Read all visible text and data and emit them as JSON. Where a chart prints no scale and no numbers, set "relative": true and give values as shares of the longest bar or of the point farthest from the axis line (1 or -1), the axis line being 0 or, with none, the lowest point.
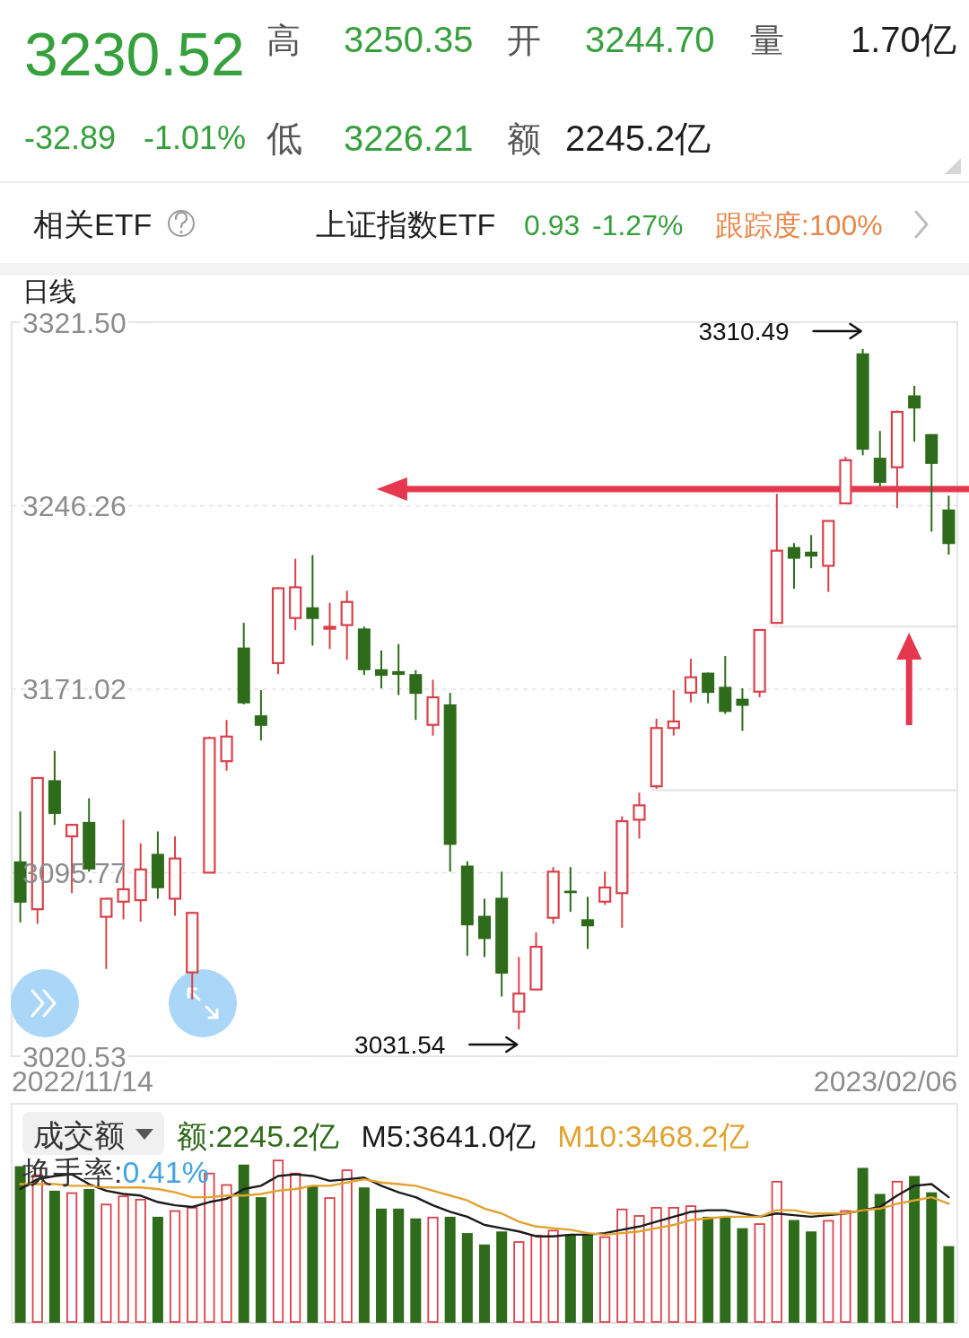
{
  "chart_data": [
    {
      "type": "other",
      "annotations": [
        "3230.52",
        "高",
        "3250.35",
        "开",
        "3244.70",
        "量",
        "1.70亿",
        "-32.89",
        "-1.01%",
        "低",
        "3226.21",
        "额",
        "2245.2亿",
        "相关ETF",
        "上证指数ETF",
        "0.93",
        "-1.27%",
        "跟踪度:100%"
      ]
    },
    {
      "type": "candlestick",
      "title": "日线",
      "tick_labels": "y",
      "categories": [
        null,
        null,
        null,
        null,
        null,
        null,
        null,
        null,
        null,
        null,
        null,
        null,
        null,
        null,
        null,
        null,
        null,
        null,
        null,
        null,
        null,
        null,
        null,
        null,
        null,
        null,
        null,
        null,
        null,
        null,
        null,
        null,
        null,
        null,
        null,
        null,
        null,
        null,
        null,
        null,
        null,
        null,
        null,
        null,
        null,
        null,
        null,
        null,
        null,
        null,
        null,
        null,
        null,
        null,
        null
      ],
      "ohlc": [
        [
          3100.4,
          3120.9,
          3075.4,
          3083.5
        ],
        [
          3080.8,
          3135.0,
          3074.8,
          3134.6
        ],
        [
          3133.7,
          3145.7,
          3115.4,
          3119.9
        ],
        [
          3110.7,
          3115.8,
          3087.4,
          3115.4
        ],
        [
          3116.6,
          3126.3,
          3096.2,
          3097.1
        ],
        [
          3077.7,
          3085.4,
          3056.3,
          3085.1
        ],
        [
          3083.9,
          3117.5,
          3076.7,
          3089.0
        ],
        [
          3084.5,
          3107.8,
          3075.7,
          3097.1
        ],
        [
          3103.5,
          3112.7,
          3085.1,
          3089.4
        ],
        [
          3085.1,
          3110.7,
          3078.1,
          3101.6
        ],
        [
          3054.9,
          3079.7,
          3043.8,
          3079.3
        ],
        [
          3095.8,
          3151.6,
          3095.6,
          3151.0
        ],
        [
          3141.5,
          3158.4,
          3137.6,
          3151.6
        ],
        [
          3188.1,
          3198.2,
          3164.8,
          3165.2
        ],
        [
          3160.3,
          3170.6,
          3150.0,
          3156.0
        ],
        [
          3181.7,
          3212.8,
          3177.2,
          3212.4
        ],
        [
          3200.2,
          3224.5,
          3195.3,
          3212.8
        ],
        [
          3204.6,
          3226.0,
          3188.9,
          3199.8
        ],
        [
          3195.8,
          3206.4,
          3187.5,
          3196.6
        ],
        [
          3197.3,
          3211.4,
          3183.1,
          3206.8
        ],
        [
          3195.9,
          3196.7,
          3176.9,
          3178.8
        ],
        [
          3179.2,
          3186.9,
          3171.4,
          3176.5
        ],
        [
          3178.4,
          3189.5,
          3168.6,
          3176.9
        ],
        [
          3177.2,
          3178.8,
          3158.4,
          3169.1
        ],
        [
          3156.4,
          3174.9,
          3152.0,
          3167.7
        ],
        [
          3164.8,
          3169.5,
          3096.2,
          3107.2
        ],
        [
          3098.7,
          3100.4,
          3061.7,
          3074.2
        ],
        [
          3078.1,
          3085.1,
          3061.2,
          3068.6
        ],
        [
          3085.5,
          3096.2,
          3045.0,
          3054.4
        ],
        [
          3038.8,
          3061.2,
          3031.54,
          3046.2
        ],
        [
          3047.9,
          3071.3,
          3047.7,
          3065.4
        ],
        [
          3077.3,
          3098.1,
          3074.8,
          3096.2
        ],
        [
          3088.4,
          3098.1,
          3079.7,
          3087.4
        ],
        [
          3076.7,
          3085.9,
          3064.5,
          3073.8
        ],
        [
          3083.9,
          3096.2,
          3082.6,
          3089.7
        ],
        [
          3087.4,
          3118.9,
          3073.2,
          3116.9
        ],
        [
          3117.5,
          3128.6,
          3109.8,
          3123.4
        ],
        [
          3131.2,
          3158.9,
          3130.2,
          3155.1
        ],
        [
          3155.1,
          3170.6,
          3152.0,
          3157.8
        ],
        [
          3169.6,
          3183.5,
          3165.6,
          3175.9
        ],
        [
          3177.8,
          3177.8,
          3165.2,
          3169.5
        ],
        [
          3172.0,
          3184.6,
          3160.9,
          3161.7
        ],
        [
          3167.1,
          3171.4,
          3153.9,
          3164.2
        ],
        [
          3170.0,
          3195.3,
          3167.7,
          3195.3
        ],
        [
          3198.2,
          3251.1,
          3197.8,
          3227.8
        ],
        [
          3229.3,
          3230.9,
          3212.2,
          3224.5
        ],
        [
          3227.4,
          3234.2,
          3220.6,
          3225.4
        ],
        [
          3221.6,
          3240.0,
          3210.9,
          3240.0
        ],
        [
          3247.2,
          3266.3,
          3246.8,
          3264.9
        ],
        [
          3308.7,
          3310.49,
          3266.9,
          3269.2
        ],
        [
          3265.9,
          3276.9,
          3254.2,
          3255.6
        ],
        [
          3262.0,
          3285.3,
          3245.3,
          3284.7
        ],
        [
          3291.5,
          3295.4,
          3272.5,
          3286.1
        ],
        [
          3275.6,
          3275.6,
          3235.6,
          3263.41
        ],
        [
          3244.7,
          3250.35,
          3226.21,
          3230.52
        ]
      ],
      "colors": [
        "#2e6b1a",
        "#d9414a",
        "#2e6b1a",
        "#d9414a",
        "#2e6b1a",
        "#d9414a",
        "#d9414a",
        "#d9414a",
        "#2e6b1a",
        "#d9414a",
        "#d9414a",
        "#d9414a",
        "#d9414a",
        "#2e6b1a",
        "#2e6b1a",
        "#d9414a",
        "#d9414a",
        "#2e6b1a",
        "#d9414a",
        "#d9414a",
        "#2e6b1a",
        "#2e6b1a",
        "#2e6b1a",
        "#2e6b1a",
        "#d9414a",
        "#2e6b1a",
        "#2e6b1a",
        "#2e6b1a",
        "#2e6b1a",
        "#d9414a",
        "#d9414a",
        "#d9414a",
        "#2e6b1a",
        "#2e6b1a",
        "#d9414a",
        "#d9414a",
        "#d9414a",
        "#d9414a",
        "#d9414a",
        "#d9414a",
        "#2e6b1a",
        "#2e6b1a",
        "#2e6b1a",
        "#d9414a",
        "#d9414a",
        "#2e6b1a",
        "#2e6b1a",
        "#d9414a",
        "#d9414a",
        "#2e6b1a",
        "#2e6b1a",
        "#d9414a",
        "#2e6b1a",
        "#2e6b1a",
        "#2e6b1a"
      ],
      "ylim": [
        3020.53,
        3321.5
      ],
      "yticks": [
        {
          "value": 3321.5,
          "label": "3321.50"
        },
        3246.26,
        3171.02,
        3095.77,
        3020.53
      ],
      "grid": "y",
      "ref_lines": [
        {
          "axis": "y",
          "value": 3253.1,
          "color": "#e5384f"
        },
        {
          "axis": "y",
          "value": 3196.7,
          "color": "#e2e2e2"
        },
        {
          "axis": "y",
          "value": 3129.6,
          "color": "#e2e2e2"
        }
      ],
      "annotations": [
        "3310.49",
        "3031.54",
        "2022/11/14",
        "2023/02/06"
      ]
    },
    {
      "type": "bar",
      "title": "成交额",
      "relative": true,
      "legend": "top left",
      "categories": [
        null,
        null,
        null,
        null,
        null,
        null,
        null,
        null,
        null,
        null,
        null,
        null,
        null,
        null,
        null,
        null,
        null,
        null,
        null,
        null,
        null,
        null,
        null,
        null,
        null,
        null,
        null,
        null,
        null,
        null,
        null,
        null,
        null,
        null,
        null,
        null,
        null,
        null,
        null,
        null,
        null,
        null,
        null,
        null,
        null,
        null,
        null,
        null,
        null,
        null,
        null,
        null,
        null,
        null,
        null
      ],
      "series": [
        {
          "type": "bar",
          "name": "额:2245.2亿",
          "color": "#2e6b1a",
          "colors": [
            "#2e6b1a",
            "#d9414a",
            "#2e6b1a",
            "#d9414a",
            "#2e6b1a",
            "#d9414a",
            "#d9414a",
            "#d9414a",
            "#2e6b1a",
            "#d9414a",
            "#d9414a",
            "#d9414a",
            "#d9414a",
            "#2e6b1a",
            "#2e6b1a",
            "#d9414a",
            "#d9414a",
            "#2e6b1a",
            "#d9414a",
            "#d9414a",
            "#2e6b1a",
            "#2e6b1a",
            "#2e6b1a",
            "#2e6b1a",
            "#d9414a",
            "#2e6b1a",
            "#2e6b1a",
            "#2e6b1a",
            "#2e6b1a",
            "#d9414a",
            "#d9414a",
            "#d9414a",
            "#2e6b1a",
            "#2e6b1a",
            "#d9414a",
            "#d9414a",
            "#d9414a",
            "#d9414a",
            "#d9414a",
            "#d9414a",
            "#2e6b1a",
            "#2e6b1a",
            "#2e6b1a",
            "#d9414a",
            "#d9414a",
            "#2e6b1a",
            "#2e6b1a",
            "#d9414a",
            "#d9414a",
            "#2e6b1a",
            "#2e6b1a",
            "#d9414a",
            "#2e6b1a",
            "#2e6b1a",
            "#2e6b1a"
          ],
          "values": [
            0.96,
            0.91,
            0.81,
            0.8,
            0.82,
            0.73,
            0.78,
            0.76,
            0.65,
            0.69,
            0.71,
            0.92,
            0.85,
            0.97,
            0.77,
            1,
            0.92,
            0.84,
            0.77,
            0.94,
            0.83,
            0.7,
            0.7,
            0.64,
            0.65,
            0.65,
            0.55,
            0.48,
            0.56,
            0.5,
            0.54,
            0.57,
            0.54,
            0.54,
            0.53,
            0.7,
            0.66,
            0.71,
            0.71,
            0.72,
            0.65,
            0.65,
            0.58,
            0.61,
            0.87,
            0.63,
            0.56,
            0.63,
            0.69,
            0.95,
            0.79,
            0.87,
            0.9,
            0.8,
            0.47
          ]
        },
        {
          "type": "line",
          "name": "M5:3641.0亿",
          "color": "#1c1c1c",
          "values": [
            0.82,
            0.88,
            0.9,
            0.91,
            0.85,
            0.81,
            0.79,
            0.78,
            0.74,
            0.72,
            0.71,
            0.74,
            0.76,
            0.82,
            0.84,
            0.9,
            0.91,
            0.9,
            0.87,
            0.88,
            0.89,
            0.84,
            0.8,
            0.77,
            0.72,
            0.68,
            0.65,
            0.6,
            0.58,
            0.56,
            0.53,
            0.53,
            0.54,
            0.54,
            0.55,
            0.57,
            0.59,
            0.62,
            0.65,
            0.68,
            0.69,
            0.69,
            0.67,
            0.65,
            0.67,
            0.66,
            0.65,
            0.66,
            0.67,
            0.69,
            0.71,
            0.78,
            0.84,
            0.85,
            0.77
          ]
        },
        {
          "type": "line",
          "name": "M10:3468.2亿",
          "color": "#e2a230",
          "values": [
            0.85,
            0.85,
            0.85,
            0.84,
            0.84,
            0.83,
            0.83,
            0.83,
            0.82,
            0.8,
            0.77,
            0.77,
            0.78,
            0.78,
            0.79,
            0.81,
            0.82,
            0.84,
            0.84,
            0.86,
            0.88,
            0.86,
            0.85,
            0.84,
            0.81,
            0.78,
            0.75,
            0.7,
            0.67,
            0.62,
            0.59,
            0.58,
            0.57,
            0.55,
            0.54,
            0.55,
            0.56,
            0.58,
            0.6,
            0.63,
            0.64,
            0.65,
            0.65,
            0.65,
            0.69,
            0.69,
            0.67,
            0.67,
            0.67,
            0.69,
            0.7,
            0.73,
            0.75,
            0.77,
            0.73
          ]
        }
      ],
      "annotations": [
        "换手率:",
        "0.41%"
      ]
    }
  ]
}
